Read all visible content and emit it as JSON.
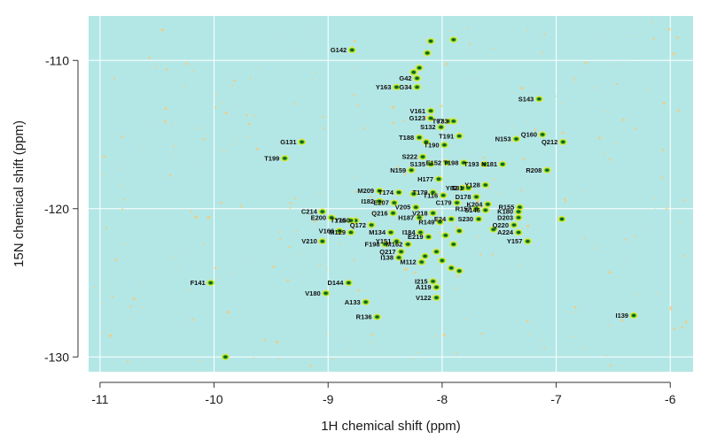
{
  "colors": {
    "panel_bg": "#b3e7e6",
    "grid": "#ffffff",
    "noise": "#f7c978",
    "contour_outer": "#f2e43a",
    "contour_mid": "#4fd92a",
    "contour_inner": "#1d5a2a",
    "contour_core": "#0c2a12"
  },
  "chart_data": {
    "type": "scatter",
    "subtype": "2D NMR HSQC peak map",
    "title": "",
    "xlabel": "1H chemical shift (ppm)",
    "ylabel": "15N chemical shift (ppm)",
    "x_reversed": true,
    "y_reversed": true,
    "xlim": [
      -11.1,
      -5.8
    ],
    "ylim": [
      -131,
      -107
    ],
    "xticks": [
      -11,
      -10,
      -9,
      -8,
      -7,
      -6
    ],
    "xtick_labels": [
      "-11",
      "-10",
      "-9",
      "-8",
      "-7",
      "-6"
    ],
    "yticks": [
      -110,
      -120,
      -130
    ],
    "ytick_labels": [
      "-110",
      "-120",
      "-130"
    ],
    "grid": true,
    "peaks": [
      {
        "label": "G142",
        "x": -8.79,
        "y": -109.3
      },
      {
        "label": "G42",
        "x": -8.22,
        "y": -111.2
      },
      {
        "label": "Y163",
        "x": -8.4,
        "y": -111.8
      },
      {
        "label": "G34",
        "x": -8.22,
        "y": -111.8
      },
      {
        "label": "S143",
        "x": -7.15,
        "y": -112.6
      },
      {
        "label": "V161",
        "x": -8.1,
        "y": -113.4
      },
      {
        "label": "G123",
        "x": -8.1,
        "y": -113.9
      },
      {
        "label": "T97",
        "x": -7.94,
        "y": -114.1
      },
      {
        "label": "T33",
        "x": -7.9,
        "y": -114.1
      },
      {
        "label": "S132",
        "x": -8.01,
        "y": -114.5
      },
      {
        "label": "Q160",
        "x": -7.12,
        "y": -115.0
      },
      {
        "label": "T191",
        "x": -7.85,
        "y": -115.1
      },
      {
        "label": "T188",
        "x": -8.2,
        "y": -115.2
      },
      {
        "label": "N153",
        "x": -7.35,
        "y": -115.3
      },
      {
        "label": "Q212",
        "x": -6.94,
        "y": -115.5
      },
      {
        "label": "G131",
        "x": -9.23,
        "y": -115.5
      },
      {
        "label": "T190",
        "x": -7.98,
        "y": -115.7
      },
      {
        "label": "S222",
        "x": -8.17,
        "y": -116.5
      },
      {
        "label": "T199",
        "x": -9.38,
        "y": -116.6
      },
      {
        "label": "E152",
        "x": -7.96,
        "y": -116.9
      },
      {
        "label": "T198",
        "x": -7.81,
        "y": -116.9
      },
      {
        "label": "T193",
        "x": -7.63,
        "y": -117.0
      },
      {
        "label": "N181",
        "x": -7.47,
        "y": -117.0
      },
      {
        "label": "S135",
        "x": -8.1,
        "y": -117.0
      },
      {
        "label": "R208",
        "x": -7.08,
        "y": -117.4
      },
      {
        "label": "N159",
        "x": -8.27,
        "y": -117.4
      },
      {
        "label": "H177",
        "x": -8.03,
        "y": -118.0
      },
      {
        "label": "Y128",
        "x": -7.62,
        "y": -118.4
      },
      {
        "label": "Y82",
        "x": -7.82,
        "y": -118.6
      },
      {
        "label": "T81",
        "x": -7.77,
        "y": -118.6
      },
      {
        "label": "M209",
        "x": -8.55,
        "y": -118.8
      },
      {
        "label": "T174",
        "x": -8.38,
        "y": -118.9
      },
      {
        "label": "T179",
        "x": -8.08,
        "y": -118.9
      },
      {
        "label": "T116",
        "x": -7.99,
        "y": -119.1
      },
      {
        "label": "D178",
        "x": -7.7,
        "y": -119.2
      },
      {
        "label": "I182",
        "x": -8.55,
        "y": -119.5
      },
      {
        "label": "E207",
        "x": -8.42,
        "y": -119.6
      },
      {
        "label": "C179",
        "x": -7.87,
        "y": -119.6
      },
      {
        "label": "K204",
        "x": -7.6,
        "y": -119.7
      },
      {
        "label": "R155",
        "x": -7.32,
        "y": -119.9
      },
      {
        "label": "V205",
        "x": -8.23,
        "y": -119.9
      },
      {
        "label": "R157",
        "x": -7.7,
        "y": -120.0
      },
      {
        "label": "S146",
        "x": -7.62,
        "y": -120.1
      },
      {
        "label": "C214",
        "x": -9.05,
        "y": -120.2
      },
      {
        "label": "K180",
        "x": -7.33,
        "y": -120.2
      },
      {
        "label": "Q216",
        "x": -8.43,
        "y": -120.3
      },
      {
        "label": "V218",
        "x": -8.08,
        "y": -120.3
      },
      {
        "label": "E200",
        "x": -8.97,
        "y": -120.6
      },
      {
        "label": "H187",
        "x": -8.2,
        "y": -120.6
      },
      {
        "label": "D203",
        "x": -7.33,
        "y": -120.6
      },
      {
        "label": "E24",
        "x": -7.92,
        "y": -120.7
      },
      {
        "label": "S230",
        "x": -7.68,
        "y": -120.7
      },
      {
        "label": "Y150",
        "x": -8.76,
        "y": -120.8
      },
      {
        "label": "T176",
        "x": -8.8,
        "y": -120.8
      },
      {
        "label": "R149",
        "x": -8.02,
        "y": -120.9
      },
      {
        "label": "Q172",
        "x": -8.62,
        "y": -121.1
      },
      {
        "label": "Q220",
        "x": -7.37,
        "y": -121.1
      },
      {
        "label": "V166",
        "x": -8.9,
        "y": -121.5
      },
      {
        "label": "M129",
        "x": -8.8,
        "y": -121.6
      },
      {
        "label": "M134",
        "x": -8.45,
        "y": -121.6
      },
      {
        "label": "A224",
        "x": -7.33,
        "y": -121.6
      },
      {
        "label": "I184",
        "x": -8.19,
        "y": -121.6
      },
      {
        "label": "E219",
        "x": -8.12,
        "y": -121.9
      },
      {
        "label": "V210",
        "x": -9.05,
        "y": -122.2
      },
      {
        "label": "Y151",
        "x": -8.4,
        "y": -122.2
      },
      {
        "label": "Y157",
        "x": -7.25,
        "y": -122.2
      },
      {
        "label": "F198",
        "x": -8.5,
        "y": -122.4
      },
      {
        "label": "M162",
        "x": -8.3,
        "y": -122.4
      },
      {
        "label": "Q217",
        "x": -8.36,
        "y": -122.9
      },
      {
        "label": "I138",
        "x": -8.38,
        "y": -123.3
      },
      {
        "label": "M112",
        "x": -8.18,
        "y": -123.6
      },
      {
        "label": "D144",
        "x": -8.82,
        "y": -125.0
      },
      {
        "label": "I215",
        "x": -8.08,
        "y": -124.9
      },
      {
        "label": "F141",
        "x": -10.03,
        "y": -125.0
      },
      {
        "label": "A119",
        "x": -8.05,
        "y": -125.3
      },
      {
        "label": "V180",
        "x": -9.02,
        "y": -125.7
      },
      {
        "label": "V122",
        "x": -8.05,
        "y": -126.0
      },
      {
        "label": "A133",
        "x": -8.67,
        "y": -126.3
      },
      {
        "label": "R136",
        "x": -8.57,
        "y": -127.3
      },
      {
        "label": "I139",
        "x": -6.32,
        "y": -127.2
      }
    ],
    "unlabeled_peaks": [
      {
        "x": -8.13,
        "y": -109.5
      },
      {
        "x": -8.2,
        "y": -110.5
      },
      {
        "x": -8.25,
        "y": -110.8
      },
      {
        "x": -7.9,
        "y": -108.6
      },
      {
        "x": -8.1,
        "y": -108.7
      },
      {
        "x": -9.9,
        "y": -130.0
      },
      {
        "x": -7.97,
        "y": -121.8
      },
      {
        "x": -7.85,
        "y": -121.5
      },
      {
        "x": -7.9,
        "y": -122.4
      },
      {
        "x": -8.0,
        "y": -123.5
      },
      {
        "x": -7.92,
        "y": -124.0
      },
      {
        "x": -7.85,
        "y": -124.2
      },
      {
        "x": -8.15,
        "y": -123.2
      },
      {
        "x": -8.05,
        "y": -122.9
      },
      {
        "x": -6.95,
        "y": -120.7
      },
      {
        "x": -7.55,
        "y": -121.4
      },
      {
        "x": -8.25,
        "y": -119.0
      },
      {
        "x": -8.14,
        "y": -115.5
      }
    ]
  }
}
